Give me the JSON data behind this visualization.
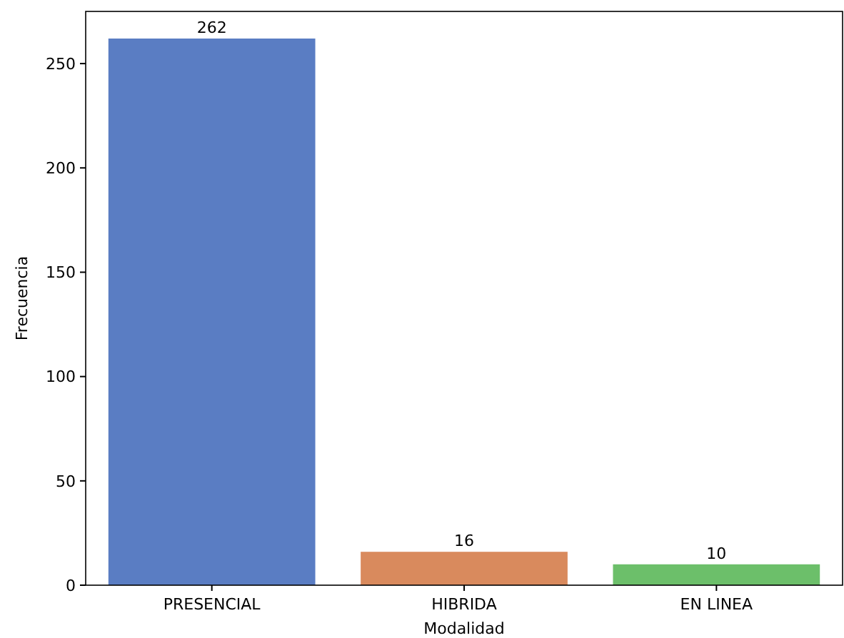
{
  "chart_data": {
    "type": "bar",
    "xlabel": "Modalidad",
    "ylabel": "Frecuencia",
    "categories": [
      "PRESENCIAL",
      "HIBRIDA",
      "EN LINEA"
    ],
    "values": [
      262,
      16,
      10
    ],
    "colors": [
      "#5a7dc3",
      "#d98a5d",
      "#6cbf6a"
    ],
    "ylim": [
      0,
      275
    ],
    "yticks": [
      0,
      50,
      100,
      150,
      200,
      250
    ],
    "grid": false,
    "data_labels": true
  }
}
